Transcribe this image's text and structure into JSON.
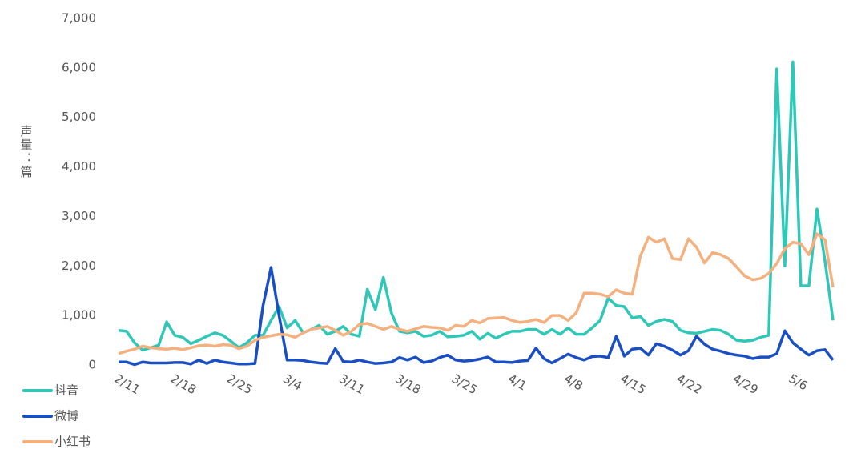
{
  "chart_data": {
    "type": "line",
    "y_label": "声量：篇",
    "categories": [
      "2/11",
      null,
      null,
      null,
      null,
      null,
      null,
      "2/18",
      null,
      null,
      null,
      null,
      null,
      null,
      "2/25",
      null,
      null,
      null,
      null,
      null,
      null,
      "3/4",
      null,
      null,
      null,
      null,
      null,
      null,
      "3/11",
      null,
      null,
      null,
      null,
      null,
      null,
      "3/18",
      null,
      null,
      null,
      null,
      null,
      null,
      "3/25",
      null,
      null,
      null,
      null,
      null,
      null,
      "4/1",
      null,
      null,
      null,
      null,
      null,
      null,
      "4/8",
      null,
      null,
      null,
      null,
      null,
      null,
      "4/15",
      null,
      null,
      null,
      null,
      null,
      null,
      "4/22",
      null,
      null,
      null,
      null,
      null,
      null,
      "4/29",
      null,
      null,
      null,
      null,
      null,
      null,
      "5/6",
      null,
      null,
      null,
      null,
      null
    ],
    "series": [
      {
        "name": "抖音",
        "color": "#2ec7b8",
        "values": [
          700,
          680,
          450,
          300,
          350,
          400,
          870,
          600,
          560,
          430,
          500,
          580,
          650,
          600,
          480,
          350,
          450,
          600,
          600,
          900,
          1180,
          750,
          900,
          650,
          720,
          800,
          620,
          680,
          780,
          620,
          580,
          1530,
          1120,
          1770,
          1050,
          680,
          650,
          680,
          580,
          600,
          680,
          570,
          580,
          600,
          680,
          520,
          640,
          540,
          620,
          680,
          680,
          720,
          720,
          620,
          720,
          620,
          750,
          620,
          620,
          750,
          900,
          1350,
          1200,
          1180,
          950,
          980,
          800,
          880,
          920,
          880,
          700,
          650,
          640,
          680,
          720,
          700,
          620,
          500,
          480,
          500,
          560,
          600,
          5980,
          2000,
          6120,
          1600,
          1600,
          3150,
          2100,
          900
        ]
      },
      {
        "name": "微博",
        "color": "#1a4fc4",
        "values": [
          60,
          60,
          10,
          60,
          40,
          40,
          40,
          50,
          50,
          20,
          100,
          30,
          100,
          60,
          40,
          20,
          20,
          30,
          1200,
          1970,
          1000,
          100,
          100,
          90,
          60,
          40,
          30,
          330,
          70,
          60,
          100,
          60,
          30,
          40,
          60,
          150,
          100,
          160,
          50,
          80,
          150,
          200,
          100,
          80,
          90,
          120,
          160,
          60,
          60,
          50,
          80,
          90,
          340,
          130,
          40,
          130,
          220,
          150,
          100,
          170,
          180,
          150,
          580,
          180,
          320,
          340,
          200,
          430,
          380,
          300,
          200,
          290,
          580,
          420,
          320,
          280,
          230,
          200,
          180,
          130,
          160,
          160,
          230,
          690,
          450,
          320,
          200,
          290,
          310,
          100
        ]
      },
      {
        "name": "小红书",
        "color": "#f5b07f",
        "values": [
          230,
          280,
          320,
          380,
          350,
          330,
          320,
          340,
          310,
          350,
          390,
          400,
          380,
          410,
          400,
          330,
          380,
          500,
          560,
          590,
          620,
          610,
          560,
          650,
          720,
          750,
          780,
          700,
          600,
          680,
          820,
          840,
          780,
          720,
          780,
          720,
          680,
          730,
          780,
          760,
          750,
          700,
          800,
          780,
          900,
          850,
          940,
          950,
          960,
          900,
          860,
          880,
          920,
          860,
          1000,
          1000,
          900,
          1050,
          1450,
          1450,
          1430,
          1380,
          1520,
          1450,
          1430,
          2200,
          2580,
          2480,
          2550,
          2150,
          2130,
          2550,
          2380,
          2060,
          2270,
          2230,
          2150,
          1980,
          1800,
          1720,
          1750,
          1850,
          2050,
          2350,
          2480,
          2450,
          2230,
          2650,
          2530,
          1570
        ]
      }
    ],
    "ylim": [
      0,
      7000
    ],
    "yticks": [
      0,
      {
        "value": 1000,
        "label": "1,000"
      },
      {
        "value": 2000,
        "label": "2,000"
      },
      {
        "value": 3000,
        "label": "3,000"
      },
      {
        "value": 4000,
        "label": "4,000"
      },
      {
        "value": 5000,
        "label": "5,000"
      },
      {
        "value": 6000,
        "label": "6,000"
      },
      {
        "value": 7000,
        "label": "7,000"
      }
    ],
    "grid": false
  }
}
